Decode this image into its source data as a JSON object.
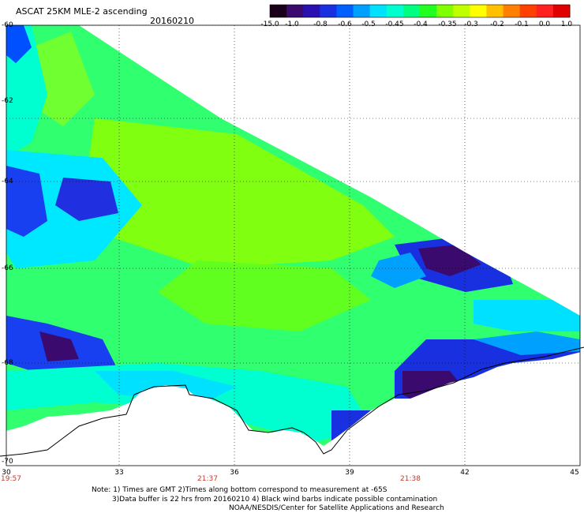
{
  "title": "ASCAT 25KM MLE-2 ascending",
  "date": "20160210",
  "colorbar": {
    "labels": [
      "-15.0",
      "-1.0",
      "-0.8",
      "-0.6",
      "-0.5",
      "-0.45",
      "-0.4",
      "-0.35",
      "-0.3",
      "-0.2",
      "-0.1",
      "0.0",
      "1.0"
    ],
    "colors": [
      "#1a001a",
      "#3a0a6e",
      "#2a10b0",
      "#1830e0",
      "#0060ff",
      "#00a0ff",
      "#00e0ff",
      "#00ffd0",
      "#00ff80",
      "#20ff20",
      "#80ff00",
      "#c0ff00",
      "#ffff00",
      "#ffc000",
      "#ff8000",
      "#ff4000",
      "#ff2020",
      "#e00000"
    ]
  },
  "latitude_labels": [
    "-60",
    "-62",
    "-64",
    "-66",
    "-68",
    "-70"
  ],
  "longitude_labels": [
    "30",
    "33",
    "36",
    "39",
    "42",
    "45"
  ],
  "time_labels": [
    "19:57",
    "21:37",
    "21:38"
  ],
  "notes": [
    "Note: 1) Times are GMT 2)Times along bottom correspond to measurement at -65S",
    "3)Data buffer is 22 hrs from 20160210 4) Black wind barbs indicate possible contamination",
    "NOAA/NESDIS/Center for Satellite Applications and Research"
  ],
  "palette": {
    "deep_purple": "#3a0a6e",
    "blue": "#1830e0",
    "cyan": "#00e0ff",
    "aqua": "#00ffd0",
    "green": "#20ff40",
    "lime": "#80ff00"
  }
}
